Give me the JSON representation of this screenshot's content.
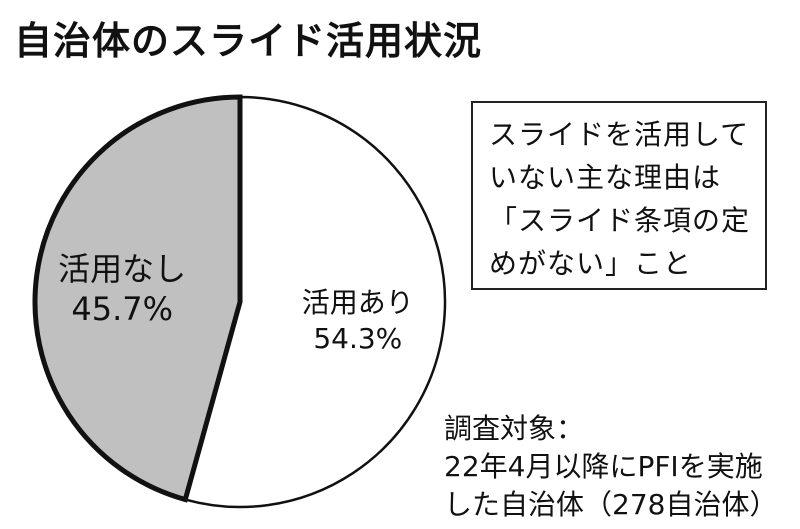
{
  "title": "自治体のスライド活用状況",
  "chart_data": {
    "type": "pie",
    "title": "自治体のスライド活用状況",
    "slices": [
      {
        "label": "活用あり",
        "value": 54.3,
        "value_label": "54.3%",
        "color": "#ffffff"
      },
      {
        "label": "活用なし",
        "value": 45.7,
        "value_label": "45.7%",
        "color": "#c0c0c0"
      }
    ]
  },
  "note": {
    "lines": [
      "スライドを活用して",
      "いない主な理由は",
      "「スライド条項の定",
      "めがない」こと"
    ]
  },
  "basis": {
    "lines": [
      "調査対象：",
      "22年4月以降にPFIを実施",
      "した自治体（278自治体）"
    ]
  }
}
